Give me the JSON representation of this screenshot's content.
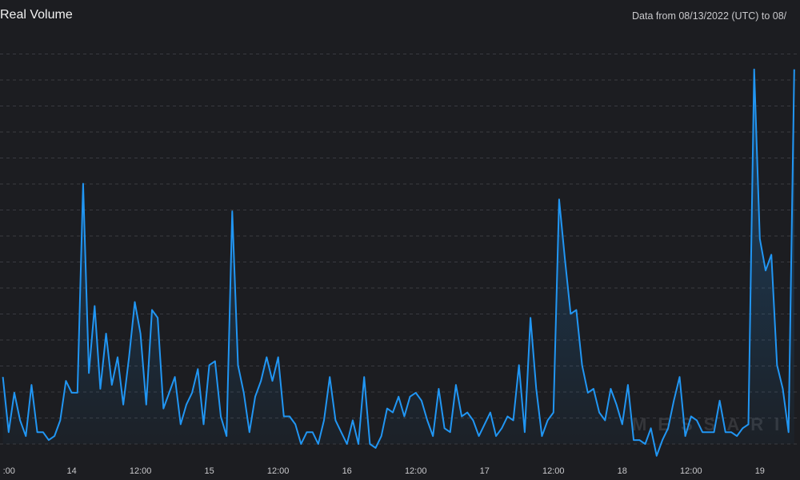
{
  "chart_data": {
    "type": "area",
    "title": "Real Volume",
    "subtitle": "Data from 08/13/2022 (UTC) to 08/",
    "watermark": "MESSARI",
    "colors": {
      "line": "#2196f3",
      "grid": "#3a3b40",
      "background": "#1c1d21"
    },
    "grid": true,
    "x_tick_labels": [
      {
        "label": ":00",
        "x": 0
      },
      {
        "label": "14",
        "x": 6
      },
      {
        "label": "12:00",
        "x": 12
      },
      {
        "label": "15",
        "x": 18
      },
      {
        "label": "12:00",
        "x": 24
      },
      {
        "label": "16",
        "x": 30
      },
      {
        "label": "12:00",
        "x": 36
      },
      {
        "label": "17",
        "x": 42
      },
      {
        "label": "12:00",
        "x": 48
      },
      {
        "label": "18",
        "x": 54
      },
      {
        "label": "12:00",
        "x": 60
      },
      {
        "label": "19",
        "x": 66
      }
    ],
    "xlim": [
      -0.25,
      69.5
    ],
    "ylim": [
      0,
      100
    ],
    "series": [
      {
        "points": [
          [
            0,
            17
          ],
          [
            0.5,
            3
          ],
          [
            1,
            13
          ],
          [
            1.5,
            6
          ],
          [
            2,
            2
          ],
          [
            2.5,
            15
          ],
          [
            3,
            3
          ],
          [
            3.5,
            3
          ],
          [
            4,
            1
          ],
          [
            4.5,
            2
          ],
          [
            5,
            6
          ],
          [
            5.5,
            16
          ],
          [
            6,
            13
          ],
          [
            6.5,
            13
          ],
          [
            7,
            66
          ],
          [
            7.5,
            18
          ],
          [
            8,
            35
          ],
          [
            8.5,
            14
          ],
          [
            9,
            28
          ],
          [
            9.5,
            15
          ],
          [
            10,
            22
          ],
          [
            10.5,
            10
          ],
          [
            11,
            22
          ],
          [
            11.5,
            36
          ],
          [
            12,
            28
          ],
          [
            12.5,
            10
          ],
          [
            13,
            34
          ],
          [
            13.5,
            32
          ],
          [
            14,
            9
          ],
          [
            14.5,
            13
          ],
          [
            15,
            17
          ],
          [
            15.5,
            5
          ],
          [
            16,
            10
          ],
          [
            16.5,
            13
          ],
          [
            17,
            19
          ],
          [
            17.5,
            5
          ],
          [
            18,
            20
          ],
          [
            18.5,
            21
          ],
          [
            19,
            7
          ],
          [
            19.5,
            2
          ],
          [
            20,
            59
          ],
          [
            20.5,
            20
          ],
          [
            21,
            13
          ],
          [
            21.5,
            3
          ],
          [
            22,
            12
          ],
          [
            22.5,
            16
          ],
          [
            23,
            22
          ],
          [
            23.5,
            16
          ],
          [
            24,
            22
          ],
          [
            24.5,
            7
          ],
          [
            25,
            7
          ],
          [
            25.5,
            5
          ],
          [
            26,
            0
          ],
          [
            26.5,
            3
          ],
          [
            27,
            3
          ],
          [
            27.5,
            0
          ],
          [
            28,
            6
          ],
          [
            28.5,
            17
          ],
          [
            29,
            6
          ],
          [
            29.5,
            3
          ],
          [
            30,
            0
          ],
          [
            30.5,
            6
          ],
          [
            31,
            0
          ],
          [
            31.5,
            17
          ],
          [
            32,
            0
          ],
          [
            32.5,
            -1
          ],
          [
            33,
            2
          ],
          [
            33.5,
            9
          ],
          [
            34,
            8
          ],
          [
            34.5,
            12
          ],
          [
            35,
            7
          ],
          [
            35.5,
            12
          ],
          [
            36,
            13
          ],
          [
            36.5,
            11
          ],
          [
            37,
            6
          ],
          [
            37.5,
            2
          ],
          [
            38,
            14
          ],
          [
            38.5,
            4
          ],
          [
            39,
            3
          ],
          [
            39.5,
            15
          ],
          [
            40,
            7
          ],
          [
            40.5,
            8
          ],
          [
            41,
            6
          ],
          [
            41.5,
            2
          ],
          [
            42,
            5
          ],
          [
            42.5,
            8
          ],
          [
            43,
            2
          ],
          [
            43.5,
            4
          ],
          [
            44,
            7
          ],
          [
            44.5,
            6
          ],
          [
            45,
            20
          ],
          [
            45.5,
            3
          ],
          [
            46,
            32
          ],
          [
            46.5,
            14
          ],
          [
            47,
            2
          ],
          [
            47.5,
            6
          ],
          [
            48,
            8
          ],
          [
            48.5,
            62
          ],
          [
            49,
            47
          ],
          [
            49.5,
            33
          ],
          [
            50,
            34
          ],
          [
            50.5,
            20
          ],
          [
            51,
            13
          ],
          [
            51.5,
            14
          ],
          [
            52,
            8
          ],
          [
            52.5,
            6
          ],
          [
            53,
            14
          ],
          [
            53.5,
            10
          ],
          [
            54,
            5
          ],
          [
            54.5,
            15
          ],
          [
            55,
            1
          ],
          [
            55.5,
            1
          ],
          [
            56,
            0
          ],
          [
            56.5,
            4
          ],
          [
            57,
            -3
          ],
          [
            57.5,
            1
          ],
          [
            58,
            4
          ],
          [
            58.5,
            11
          ],
          [
            59,
            17
          ],
          [
            59.5,
            2
          ],
          [
            60,
            7
          ],
          [
            60.5,
            6
          ],
          [
            61,
            3
          ],
          [
            61.5,
            3
          ],
          [
            62,
            3
          ],
          [
            62.5,
            11
          ],
          [
            63,
            3
          ],
          [
            63.5,
            3
          ],
          [
            64,
            2
          ],
          [
            64.5,
            4
          ],
          [
            65,
            5
          ],
          [
            65.5,
            95
          ],
          [
            66,
            52
          ],
          [
            66.5,
            44
          ],
          [
            67,
            48
          ],
          [
            67.5,
            20
          ],
          [
            68,
            14
          ],
          [
            68.5,
            3
          ],
          [
            69,
            95
          ]
        ]
      }
    ]
  }
}
